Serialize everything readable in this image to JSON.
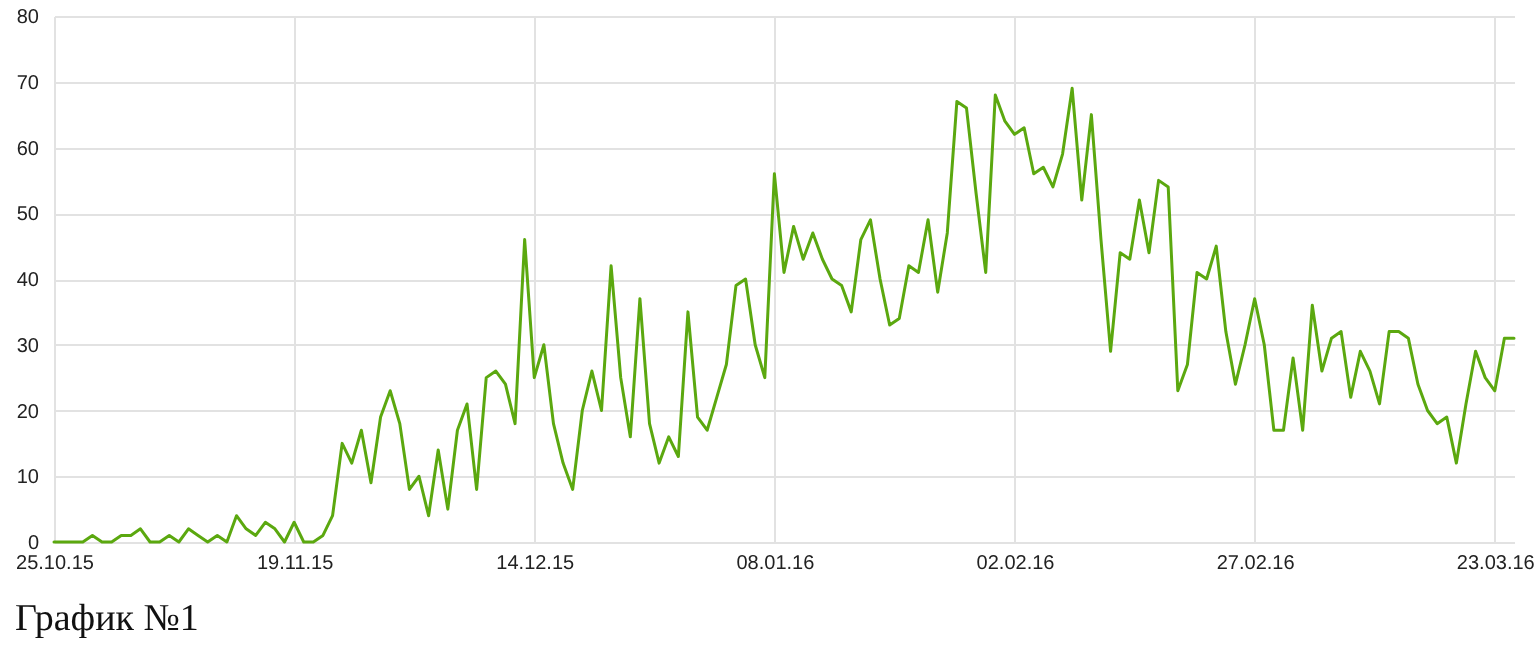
{
  "chart_data": {
    "type": "line",
    "title": "График №1",
    "x": [
      "2015-10-25",
      "2015-10-26",
      "2015-10-27",
      "2015-10-28",
      "2015-10-29",
      "2015-10-30",
      "2015-10-31",
      "2015-11-01",
      "2015-11-02",
      "2015-11-03",
      "2015-11-04",
      "2015-11-05",
      "2015-11-06",
      "2015-11-07",
      "2015-11-08",
      "2015-11-09",
      "2015-11-10",
      "2015-11-11",
      "2015-11-12",
      "2015-11-13",
      "2015-11-14",
      "2015-11-15",
      "2015-11-16",
      "2015-11-17",
      "2015-11-18",
      "2015-11-19",
      "2015-11-20",
      "2015-11-21",
      "2015-11-22",
      "2015-11-23",
      "2015-11-24",
      "2015-11-25",
      "2015-11-26",
      "2015-11-27",
      "2015-11-28",
      "2015-11-29",
      "2015-11-30",
      "2015-12-01",
      "2015-12-02",
      "2015-12-03",
      "2015-12-04",
      "2015-12-05",
      "2015-12-06",
      "2015-12-07",
      "2015-12-08",
      "2015-12-09",
      "2015-12-10",
      "2015-12-11",
      "2015-12-12",
      "2015-12-13",
      "2015-12-14",
      "2015-12-15",
      "2015-12-16",
      "2015-12-17",
      "2015-12-18",
      "2015-12-19",
      "2015-12-20",
      "2015-12-21",
      "2015-12-22",
      "2015-12-23",
      "2015-12-24",
      "2015-12-25",
      "2015-12-26",
      "2015-12-27",
      "2015-12-28",
      "2015-12-29",
      "2015-12-30",
      "2015-12-31",
      "2016-01-01",
      "2016-01-02",
      "2016-01-03",
      "2016-01-04",
      "2016-01-05",
      "2016-01-06",
      "2016-01-07",
      "2016-01-08",
      "2016-01-09",
      "2016-01-10",
      "2016-01-11",
      "2016-01-12",
      "2016-01-13",
      "2016-01-14",
      "2016-01-15",
      "2016-01-16",
      "2016-01-17",
      "2016-01-18",
      "2016-01-19",
      "2016-01-20",
      "2016-01-21",
      "2016-01-22",
      "2016-01-23",
      "2016-01-24",
      "2016-01-25",
      "2016-01-26",
      "2016-01-27",
      "2016-01-28",
      "2016-01-29",
      "2016-01-30",
      "2016-01-31",
      "2016-02-01",
      "2016-02-02",
      "2016-02-03",
      "2016-02-04",
      "2016-02-05",
      "2016-02-06",
      "2016-02-07",
      "2016-02-08",
      "2016-02-09",
      "2016-02-10",
      "2016-02-11",
      "2016-02-12",
      "2016-02-13",
      "2016-02-14",
      "2016-02-15",
      "2016-02-16",
      "2016-02-17",
      "2016-02-18",
      "2016-02-19",
      "2016-02-20",
      "2016-02-21",
      "2016-02-22",
      "2016-02-23",
      "2016-02-24",
      "2016-02-25",
      "2016-02-26",
      "2016-02-27",
      "2016-02-28",
      "2016-02-29",
      "2016-03-01",
      "2016-03-02",
      "2016-03-03",
      "2016-03-04",
      "2016-03-05",
      "2016-03-06",
      "2016-03-07",
      "2016-03-08",
      "2016-03-09",
      "2016-03-10",
      "2016-03-11",
      "2016-03-12",
      "2016-03-13",
      "2016-03-14",
      "2016-03-15",
      "2016-03-16",
      "2016-03-17",
      "2016-03-18",
      "2016-03-19",
      "2016-03-20",
      "2016-03-21",
      "2016-03-22",
      "2016-03-23",
      "2016-03-24",
      "2016-03-25"
    ],
    "series": [
      {
        "color": "#5ba80f",
        "values": [
          0,
          0,
          0,
          0,
          1,
          0,
          0,
          1,
          1,
          2,
          0,
          0,
          1,
          0,
          2,
          1,
          0,
          1,
          0,
          4,
          2,
          1,
          3,
          2,
          0,
          3,
          0,
          0,
          1,
          4,
          15,
          12,
          17,
          9,
          19,
          23,
          18,
          8,
          10,
          4,
          14,
          5,
          17,
          21,
          8,
          25,
          26,
          24,
          18,
          46,
          25,
          30,
          18,
          12,
          8,
          20,
          26,
          20,
          42,
          25,
          16,
          37,
          18,
          12,
          16,
          13,
          35,
          19,
          17,
          22,
          27,
          39,
          40,
          30,
          25,
          56,
          41,
          48,
          43,
          47,
          43,
          40,
          39,
          35,
          46,
          49,
          40,
          33,
          34,
          42,
          41,
          49,
          38,
          47,
          67,
          66,
          53,
          41,
          68,
          64,
          62,
          63,
          56,
          57,
          54,
          59,
          69,
          52,
          65,
          46,
          29,
          44,
          43,
          52,
          44,
          55,
          54,
          23,
          27,
          41,
          40,
          45,
          32,
          24,
          30,
          37,
          30,
          17,
          17,
          28,
          17,
          36,
          26,
          31,
          32,
          22,
          29,
          26,
          21,
          32,
          32,
          31,
          24,
          20,
          18,
          19,
          12,
          21,
          29,
          25,
          23,
          31,
          31
        ]
      }
    ],
    "xlim": [
      "2015-10-25",
      "2016-03-25"
    ],
    "xticks": [
      {
        "value": "2015-10-25",
        "label": "25.10.15"
      },
      {
        "value": "2015-11-19",
        "label": "19.11.15"
      },
      {
        "value": "2015-12-14",
        "label": "14.12.15"
      },
      {
        "value": "2016-01-08",
        "label": "08.01.16"
      },
      {
        "value": "2016-02-02",
        "label": "02.02.16"
      },
      {
        "value": "2016-02-27",
        "label": "27.02.16"
      },
      {
        "value": "2016-03-23",
        "label": "23.03.16"
      }
    ],
    "ylim": [
      0,
      80
    ],
    "yticks": [
      0,
      10,
      20,
      30,
      40,
      50,
      60,
      70,
      80
    ],
    "grid": true,
    "marker": "none",
    "line_style": "solid"
  }
}
